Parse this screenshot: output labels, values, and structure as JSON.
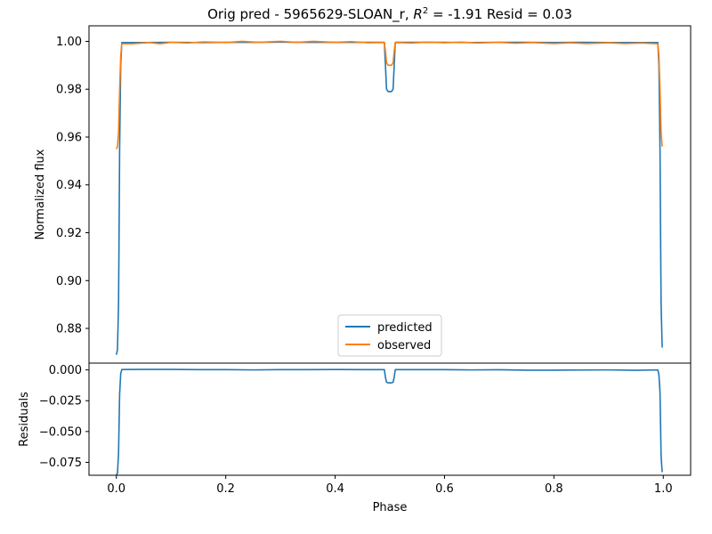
{
  "chart_data": {
    "type": "line",
    "title": "Orig pred - 5965629-SLOAN_r, R² = -1.91 Resid = 0.03",
    "title_parts": {
      "prefix": "Orig pred - 5965629-SLOAN_r, ",
      "r_symbol": "R",
      "r_exponent": "2",
      "suffix": " = -1.91 Resid = 0.03"
    },
    "xlabel": "Phase",
    "xlim": [
      -0.05,
      1.05
    ],
    "xticks": [
      0.0,
      0.2,
      0.4,
      0.6,
      0.8,
      1.0
    ],
    "xtick_labels": [
      "0.0",
      "0.2",
      "0.4",
      "0.6",
      "0.8",
      "1.0"
    ],
    "top_panel": {
      "ylabel": "Normalized flux",
      "ylim": [
        0.8655,
        1.0065
      ],
      "yticks": [
        0.88,
        0.9,
        0.92,
        0.94,
        0.96,
        0.98,
        1.0
      ],
      "ytick_labels": [
        "0.88",
        "0.90",
        "0.92",
        "0.94",
        "0.96",
        "0.98",
        "1.00"
      ],
      "legend_position": "lower-center",
      "series": [
        {
          "name": "predicted",
          "color": "#1f77b4",
          "points": [
            [
              0.0,
              0.869
            ],
            [
              0.002,
              0.871
            ],
            [
              0.004,
              0.89
            ],
            [
              0.005,
              0.92
            ],
            [
              0.006,
              0.955
            ],
            [
              0.008,
              0.99
            ],
            [
              0.01,
              0.9995
            ],
            [
              0.05,
              0.9995
            ],
            [
              0.1,
              0.9996
            ],
            [
              0.15,
              0.9995
            ],
            [
              0.2,
              0.9996
            ],
            [
              0.25,
              0.9996
            ],
            [
              0.3,
              0.9997
            ],
            [
              0.35,
              0.9996
            ],
            [
              0.4,
              0.9996
            ],
            [
              0.45,
              0.9996
            ],
            [
              0.49,
              0.9996
            ],
            [
              0.492,
              0.99
            ],
            [
              0.494,
              0.98
            ],
            [
              0.497,
              0.979
            ],
            [
              0.503,
              0.979
            ],
            [
              0.506,
              0.98
            ],
            [
              0.508,
              0.99
            ],
            [
              0.51,
              0.9996
            ],
            [
              0.55,
              0.9996
            ],
            [
              0.6,
              0.9996
            ],
            [
              0.65,
              0.9995
            ],
            [
              0.7,
              0.9996
            ],
            [
              0.75,
              0.9996
            ],
            [
              0.8,
              0.9995
            ],
            [
              0.85,
              0.9996
            ],
            [
              0.9,
              0.9995
            ],
            [
              0.95,
              0.9995
            ],
            [
              0.99,
              0.9995
            ],
            [
              0.992,
              0.99
            ],
            [
              0.994,
              0.955
            ],
            [
              0.995,
              0.92
            ],
            [
              0.996,
              0.89
            ],
            [
              0.998,
              0.872
            ]
          ]
        },
        {
          "name": "observed",
          "color": "#ff7f0e",
          "points": [
            [
              0.0,
              0.955
            ],
            [
              0.002,
              0.956
            ],
            [
              0.004,
              0.962
            ],
            [
              0.006,
              0.98
            ],
            [
              0.008,
              0.994
            ],
            [
              0.01,
              0.999
            ],
            [
              0.03,
              0.999
            ],
            [
              0.06,
              0.9995
            ],
            [
              0.08,
              0.999
            ],
            [
              0.1,
              0.9996
            ],
            [
              0.13,
              0.9993
            ],
            [
              0.16,
              0.9998
            ],
            [
              0.2,
              0.9995
            ],
            [
              0.23,
              1.0
            ],
            [
              0.26,
              0.9996
            ],
            [
              0.3,
              1.0
            ],
            [
              0.33,
              0.9996
            ],
            [
              0.36,
              1.0
            ],
            [
              0.4,
              0.9996
            ],
            [
              0.43,
              0.9999
            ],
            [
              0.46,
              0.9994
            ],
            [
              0.49,
              0.9995
            ],
            [
              0.492,
              0.996
            ],
            [
              0.494,
              0.991
            ],
            [
              0.497,
              0.99
            ],
            [
              0.503,
              0.99
            ],
            [
              0.506,
              0.991
            ],
            [
              0.508,
              0.996
            ],
            [
              0.51,
              0.9995
            ],
            [
              0.54,
              0.9993
            ],
            [
              0.57,
              0.9997
            ],
            [
              0.6,
              0.9994
            ],
            [
              0.63,
              0.9997
            ],
            [
              0.66,
              0.9993
            ],
            [
              0.7,
              0.9996
            ],
            [
              0.73,
              0.9992
            ],
            [
              0.76,
              0.9995
            ],
            [
              0.8,
              0.9991
            ],
            [
              0.83,
              0.9994
            ],
            [
              0.86,
              0.9991
            ],
            [
              0.9,
              0.9994
            ],
            [
              0.93,
              0.9991
            ],
            [
              0.96,
              0.9993
            ],
            [
              0.99,
              0.999
            ],
            [
              0.992,
              0.994
            ],
            [
              0.994,
              0.98
            ],
            [
              0.996,
              0.962
            ],
            [
              0.998,
              0.956
            ]
          ]
        }
      ]
    },
    "bottom_panel": {
      "ylabel": "Residuals",
      "ylim": [
        -0.0855,
        0.0055
      ],
      "yticks": [
        0.0,
        -0.025,
        -0.05,
        -0.075
      ],
      "ytick_labels": [
        "0.000",
        "−0.025",
        "−0.050",
        "−0.075"
      ],
      "series": [
        {
          "name": "residuals",
          "color": "#1f77b4",
          "points": [
            [
              0.0,
              -0.085
            ],
            [
              0.002,
              -0.084
            ],
            [
              0.004,
              -0.068
            ],
            [
              0.006,
              -0.02
            ],
            [
              0.008,
              -0.003
            ],
            [
              0.01,
              0.0003
            ],
            [
              0.05,
              0.0004
            ],
            [
              0.1,
              0.0004
            ],
            [
              0.15,
              0.0002
            ],
            [
              0.2,
              0.0002
            ],
            [
              0.25,
              0.0
            ],
            [
              0.3,
              0.0002
            ],
            [
              0.35,
              0.0002
            ],
            [
              0.4,
              0.0003
            ],
            [
              0.45,
              0.0002
            ],
            [
              0.49,
              0.0002
            ],
            [
              0.492,
              -0.006
            ],
            [
              0.494,
              -0.01
            ],
            [
              0.497,
              -0.0105
            ],
            [
              0.503,
              -0.0105
            ],
            [
              0.506,
              -0.01
            ],
            [
              0.508,
              -0.006
            ],
            [
              0.51,
              0.0002
            ],
            [
              0.55,
              0.0002
            ],
            [
              0.6,
              0.0002
            ],
            [
              0.65,
              0.0
            ],
            [
              0.7,
              0.0001
            ],
            [
              0.75,
              -0.0002
            ],
            [
              0.8,
              -0.0002
            ],
            [
              0.85,
              -0.0001
            ],
            [
              0.9,
              0.0
            ],
            [
              0.95,
              -0.0003
            ],
            [
              0.99,
              0.0
            ],
            [
              0.992,
              -0.004
            ],
            [
              0.994,
              -0.018
            ],
            [
              0.996,
              -0.07
            ],
            [
              0.998,
              -0.083
            ]
          ]
        }
      ]
    }
  }
}
